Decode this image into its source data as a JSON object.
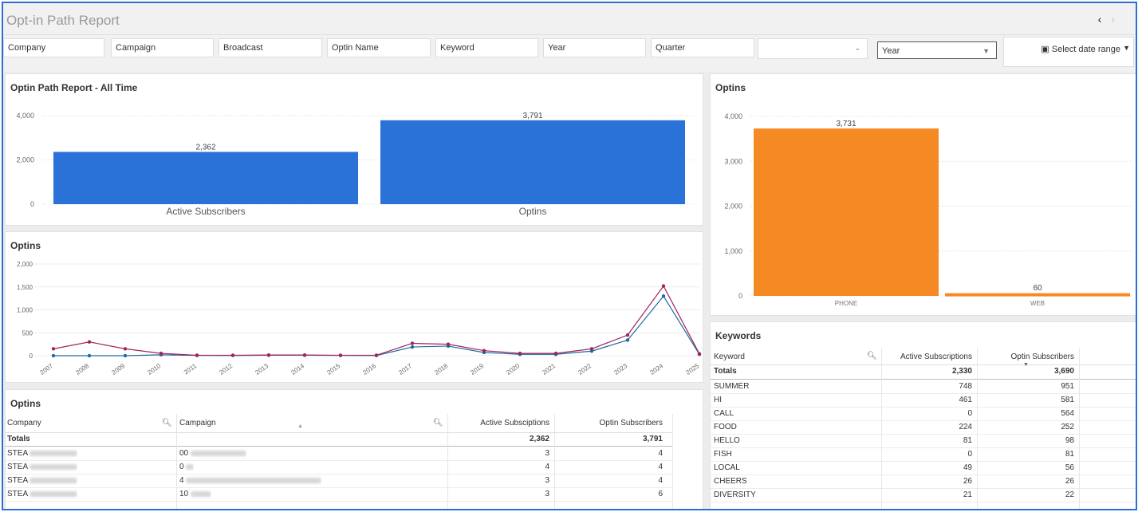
{
  "header": {
    "title": "Opt-in Path Report",
    "nav_prev": "‹",
    "nav_next": "›"
  },
  "filters": {
    "company": "Company",
    "campaign": "Campaign",
    "broadcast": "Broadcast",
    "optin_name": "Optin Name",
    "keyword": "Keyword",
    "year": "Year",
    "quarter": "Quarter",
    "empty_select": "",
    "year_select": "Year",
    "date_range": "Select date range"
  },
  "icons": {
    "calendar": "calendar-icon",
    "search": "search-icon",
    "sort": "sort-icon"
  },
  "colors": {
    "bar_blue": "#2a72d8",
    "bar_orange": "#f58a24",
    "line_a": "#a3245c",
    "line_b": "#1f6ba0"
  },
  "panels": {
    "path_report": "Optin Path Report - All Time",
    "optins_line": "Optins",
    "optins_bar": "Optins",
    "keywords": "Keywords",
    "optins_table": "Optins"
  },
  "chart_data": [
    {
      "type": "bar",
      "title": "Optin Path Report - All Time",
      "categories": [
        "Active Subscribers",
        "Optins"
      ],
      "values": [
        2362,
        3791
      ],
      "value_labels": [
        "2,362",
        "3,791"
      ],
      "yticks": [
        "0",
        "2,000",
        "4,000"
      ],
      "ylim": [
        0,
        4000
      ]
    },
    {
      "type": "line",
      "title": "Optins",
      "x": [
        "2007",
        "2008",
        "2009",
        "2010",
        "2011",
        "2012",
        "2013",
        "2014",
        "2015",
        "2016",
        "2017",
        "2018",
        "2019",
        "2020",
        "2021",
        "2022",
        "2023",
        "2024",
        "2025"
      ],
      "series": [
        {
          "values": [
            150,
            300,
            150,
            50,
            10,
            10,
            15,
            15,
            10,
            10,
            270,
            250,
            110,
            50,
            50,
            150,
            450,
            1520,
            40
          ]
        },
        {
          "values": [
            0,
            0,
            0,
            20,
            5,
            5,
            10,
            10,
            5,
            5,
            190,
            210,
            70,
            30,
            30,
            100,
            340,
            1300,
            30
          ]
        }
      ],
      "yticks": [
        "0",
        "500",
        "1,000",
        "1,500",
        "2,000"
      ],
      "ylim": [
        0,
        2000
      ]
    },
    {
      "type": "bar",
      "title": "Optins",
      "categories": [
        "PHONE",
        "WEB"
      ],
      "values": [
        3731,
        60
      ],
      "value_labels": [
        "3,731",
        "60"
      ],
      "yticks": [
        "0",
        "1,000",
        "2,000",
        "3,000",
        "4,000"
      ],
      "ylim": [
        0,
        4000
      ]
    }
  ],
  "keywords_table": {
    "columns": [
      "Keyword",
      "Active Subscriptions",
      "Optin Subscribers"
    ],
    "totals": {
      "label": "Totals",
      "active": "2,330",
      "optin": "3,690"
    },
    "rows": [
      {
        "keyword": "SUMMER",
        "active": "748",
        "optin": "951"
      },
      {
        "keyword": "HI",
        "active": "461",
        "optin": "581"
      },
      {
        "keyword": "CALL",
        "active": "0",
        "optin": "564"
      },
      {
        "keyword": "FOOD",
        "active": "224",
        "optin": "252"
      },
      {
        "keyword": "HELLO",
        "active": "81",
        "optin": "98"
      },
      {
        "keyword": "FISH",
        "active": "0",
        "optin": "81"
      },
      {
        "keyword": "LOCAL",
        "active": "49",
        "optin": "56"
      },
      {
        "keyword": "CHEERS",
        "active": "26",
        "optin": "26"
      },
      {
        "keyword": "DIVERSITY",
        "active": "21",
        "optin": "22"
      }
    ]
  },
  "optins_table": {
    "columns": [
      "Company",
      "Campaign",
      "Active Subsciptions",
      "Optin Subscribers"
    ],
    "totals": {
      "label": "Totals",
      "active": "2,362",
      "optin": "3,791"
    },
    "rows": [
      {
        "company": "STEA",
        "campaign": "00",
        "active": "3",
        "optin": "4"
      },
      {
        "company": "STEA",
        "campaign": "0",
        "active": "4",
        "optin": "4"
      },
      {
        "company": "STEA",
        "campaign": "4",
        "active": "3",
        "optin": "4"
      },
      {
        "company": "STEA",
        "campaign": "10",
        "active": "3",
        "optin": "6"
      }
    ]
  }
}
